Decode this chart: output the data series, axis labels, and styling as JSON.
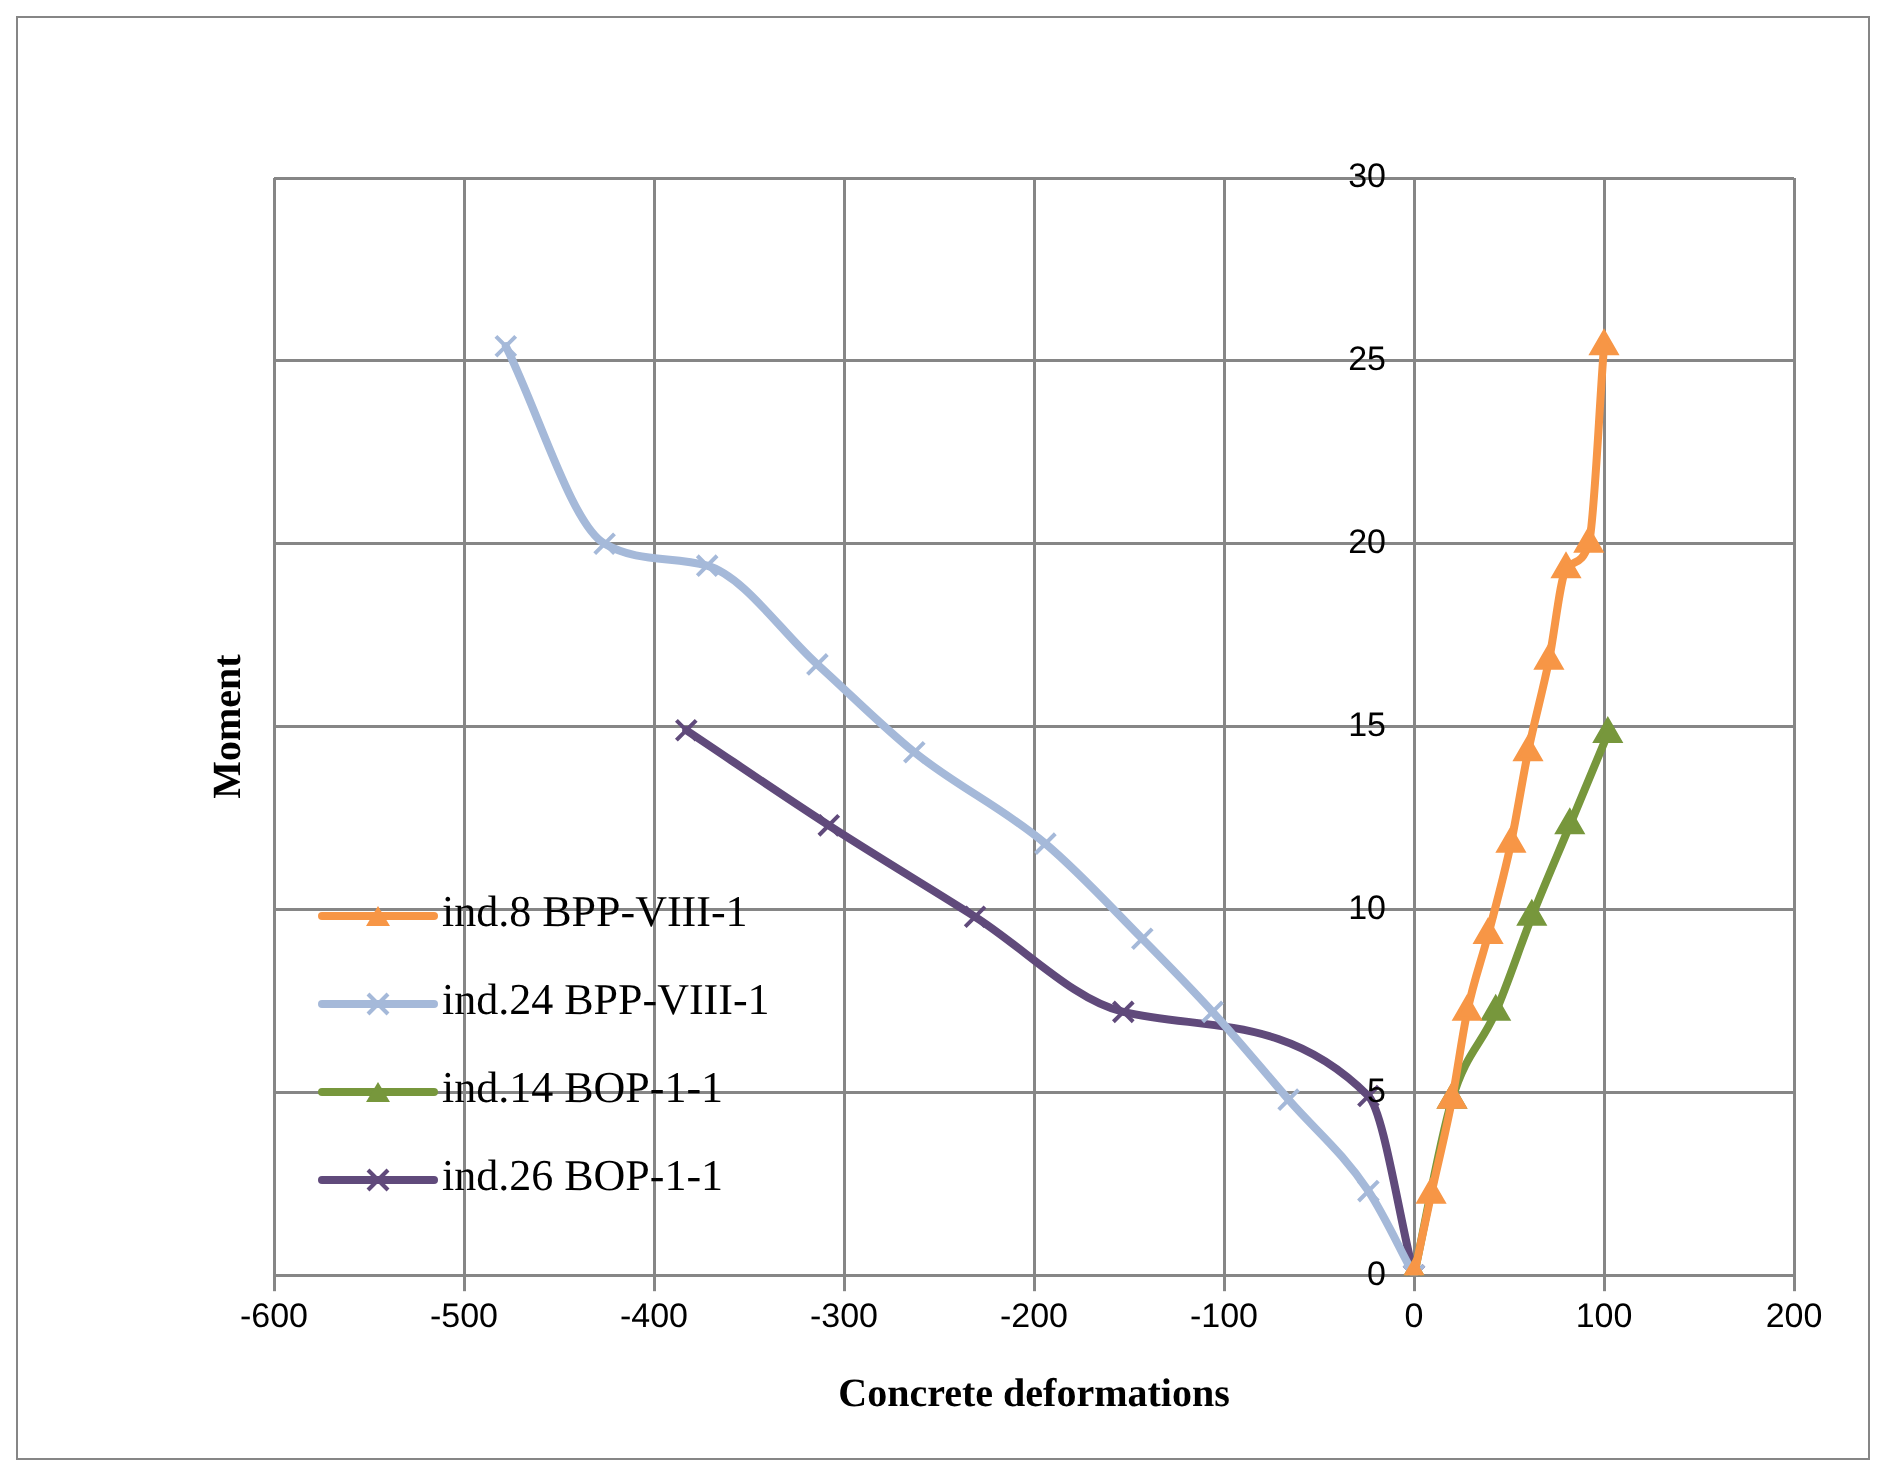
{
  "chart_data": {
    "type": "line",
    "xlabel": "Concrete deformations",
    "ylabel": "Moment",
    "xlim": [
      -600,
      200
    ],
    "xticks": [
      -600,
      -500,
      -400,
      -300,
      -200,
      -100,
      0,
      100,
      200
    ],
    "ylim": [
      0,
      30
    ],
    "yticks": [
      0,
      5,
      10,
      15,
      20,
      25,
      30
    ],
    "grid": true,
    "legend": "bottom left",
    "series": [
      {
        "name": "ind.8 BPP-VIII-1",
        "color": "#f79646",
        "marker": "triangle",
        "x": [
          0,
          9,
          20,
          28,
          39,
          51,
          60,
          71,
          80,
          92,
          100
        ],
        "values": [
          0,
          2.2,
          4.8,
          7.2,
          9.3,
          11.8,
          14.3,
          16.8,
          19.3,
          20,
          25.4
        ]
      },
      {
        "name": "ind.24 BPP-VIII-1",
        "color": "#a5b9d9",
        "marker": "cross",
        "x": [
          0,
          -24,
          -66,
          -106,
          -143,
          -194,
          -263,
          -314,
          -372,
          -426,
          -478
        ],
        "values": [
          0,
          2.3,
          4.8,
          7.2,
          9.2,
          11.8,
          14.3,
          16.7,
          19.4,
          20,
          25.4
        ]
      },
      {
        "name": "ind.14 BOP-1-1",
        "color": "#77973c",
        "marker": "triangle",
        "x": [
          0,
          20,
          43,
          62,
          82,
          102
        ],
        "values": [
          0,
          4.8,
          7.2,
          9.8,
          12.3,
          14.8
        ]
      },
      {
        "name": "ind.26 BOP-1-1",
        "color": "#604a7b",
        "marker": "cross",
        "x": [
          0,
          -24,
          -153,
          -231,
          -308,
          -383
        ],
        "values": [
          0,
          4.9,
          7.2,
          9.8,
          12.3,
          14.9
        ]
      }
    ]
  }
}
